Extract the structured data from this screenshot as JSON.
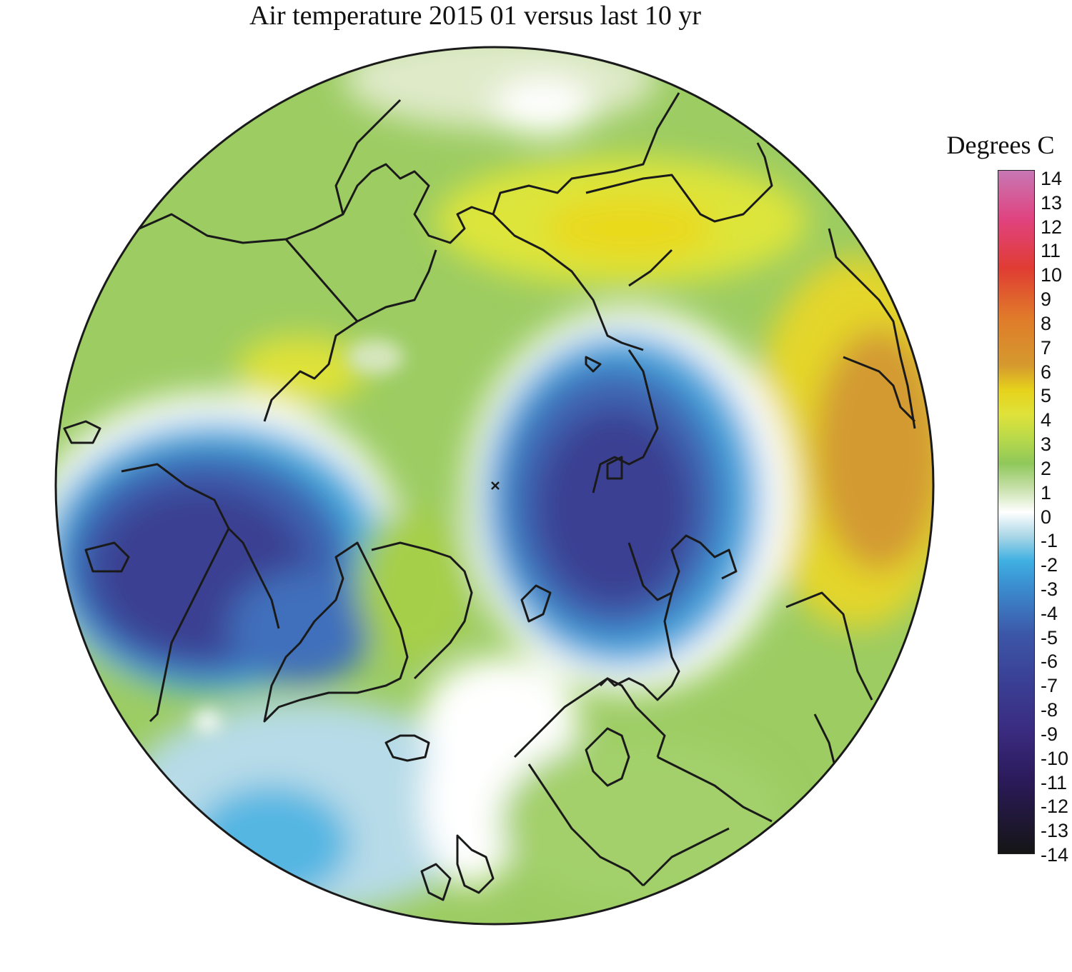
{
  "title": "Air temperature 2015 01 versus last 10 yr",
  "legend": {
    "title": "Degrees C",
    "min": -14,
    "max": 14,
    "ticks": [
      "14",
      "13",
      "12",
      "11",
      "10",
      "9",
      "8",
      "7",
      "6",
      "5",
      "4",
      "3",
      "2",
      "1",
      "0",
      "-1",
      "-2",
      "-3",
      "-4",
      "-5",
      "-6",
      "-7",
      "-8",
      "-9",
      "-10",
      "-11",
      "-12",
      "-13",
      "-14"
    ],
    "colors": [
      {
        "v": 14,
        "c": "#c777b4"
      },
      {
        "v": 12,
        "c": "#e0437f"
      },
      {
        "v": 10,
        "c": "#e03c33"
      },
      {
        "v": 8,
        "c": "#e07a2a"
      },
      {
        "v": 6,
        "c": "#d59a2e"
      },
      {
        "v": 5,
        "c": "#e6d21c"
      },
      {
        "v": 4,
        "c": "#dfe23a"
      },
      {
        "v": 3,
        "c": "#b8d94a"
      },
      {
        "v": 2,
        "c": "#8fc85a"
      },
      {
        "v": 1,
        "c": "#c6dfa8"
      },
      {
        "v": 0,
        "c": "#ffffff"
      },
      {
        "v": -1,
        "c": "#a9d6e6"
      },
      {
        "v": -2,
        "c": "#3fb0e2"
      },
      {
        "v": -3,
        "c": "#3b8fd0"
      },
      {
        "v": -5,
        "c": "#3c57a8"
      },
      {
        "v": -7,
        "c": "#3a3f94"
      },
      {
        "v": -9,
        "c": "#3a2b80"
      },
      {
        "v": -11,
        "c": "#2b1a5a"
      },
      {
        "v": -14,
        "c": "#151515"
      }
    ]
  }
}
